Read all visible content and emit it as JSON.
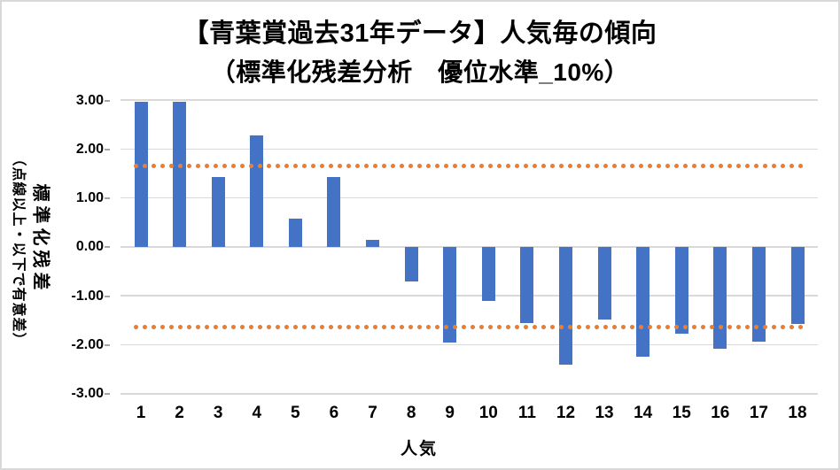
{
  "chart": {
    "title": "【青葉賞過去31年データ】人気毎の傾向",
    "subtitle": "（標準化残差分析　優位水準_10%）",
    "y_axis_title": "標準化残差",
    "y_axis_note": "（点線以上・以下で有意差）",
    "x_axis_title": "人気",
    "colors": {
      "bar": "#4472C4",
      "threshold": "#ED7D31",
      "gridline": "#D9D9D9",
      "frame_border": "#D9D9D9",
      "text": "#000000"
    }
  },
  "chart_data": {
    "type": "bar",
    "title": "【青葉賞過去31年データ】人気毎の傾向",
    "subtitle": "（標準化残差分析　優位水準_10%）",
    "xlabel": "人気",
    "ylabel": "標準化残差（点線以上・以下で有意差）",
    "categories": [
      "1",
      "2",
      "3",
      "4",
      "5",
      "6",
      "7",
      "8",
      "9",
      "10",
      "11",
      "12",
      "13",
      "14",
      "15",
      "16",
      "17",
      "18"
    ],
    "values": [
      2.97,
      2.97,
      1.43,
      2.28,
      0.57,
      1.43,
      0.14,
      -0.7,
      -1.96,
      -1.11,
      -1.55,
      -2.4,
      -1.49,
      -2.24,
      -1.78,
      -2.09,
      -1.94,
      -1.58
    ],
    "ylim": [
      -3,
      3
    ],
    "y_tick_labels": [
      "3.00",
      "2.00",
      "1.00",
      "0.00",
      "-1.00",
      "-2.00",
      "-3.00"
    ],
    "grid": true,
    "legend": false,
    "threshold_lines": {
      "values": [
        1.645,
        -1.645
      ],
      "style": "dotted",
      "color": "#ED7D31"
    },
    "bar_color": "#4472C4"
  }
}
